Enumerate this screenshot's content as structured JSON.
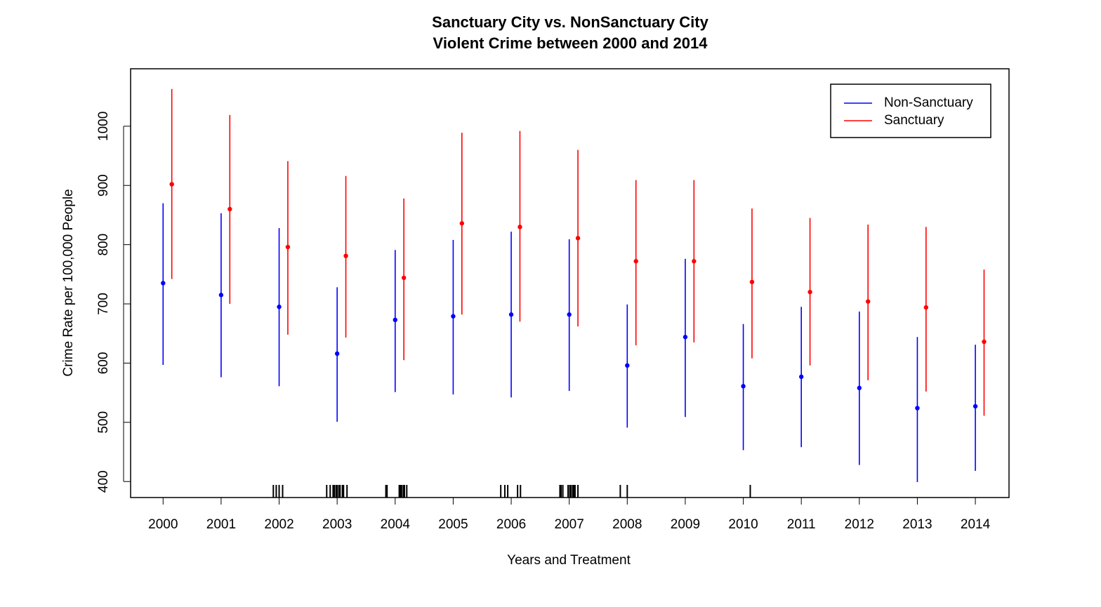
{
  "chart_data": {
    "type": "errorbar",
    "title": [
      "Sanctuary City vs. NonSanctuary City",
      "Violent Crime between 2000 and 2014"
    ],
    "x_label": "Years and Treatment",
    "y_label": "Crime Rate per 100,000 People",
    "xlim": [
      1999.44,
      2014.58
    ],
    "xticks": [
      2000,
      2001,
      2002,
      2003,
      2004,
      2005,
      2006,
      2007,
      2008,
      2009,
      2010,
      2011,
      2012,
      2013,
      2014
    ],
    "ylim": [
      373,
      1097
    ],
    "yticks": [
      400,
      500,
      600,
      700,
      800,
      900,
      1000
    ],
    "legend": "top-right",
    "series": [
      {
        "name": "Non-Sanctuary",
        "color": "#0000ff",
        "x": [
          2000,
          2001,
          2002,
          2003,
          2004,
          2005,
          2006,
          2007,
          2008,
          2009,
          2010,
          2011,
          2012,
          2013,
          2014
        ],
        "values": [
          735,
          715,
          695,
          616,
          673,
          679,
          682,
          682,
          596,
          644,
          561,
          577,
          558,
          524,
          527
        ],
        "low": [
          597,
          576,
          561,
          501,
          551,
          547,
          542,
          553,
          491,
          509,
          453,
          458,
          428,
          399,
          418
        ],
        "high": [
          870,
          853,
          828,
          728,
          791,
          808,
          822,
          809,
          699,
          776,
          666,
          695,
          687,
          644,
          631
        ]
      },
      {
        "name": "Sanctuary",
        "color": "#ff0000",
        "x": [
          2000.15,
          2001.15,
          2002.15,
          2003.15,
          2004.15,
          2005.15,
          2006.15,
          2007.15,
          2008.15,
          2009.15,
          2010.15,
          2011.15,
          2012.15,
          2013.15,
          2014.15
        ],
        "values": [
          902,
          860,
          796,
          781,
          744,
          836,
          830,
          811,
          772,
          772,
          737,
          720,
          704,
          694,
          636
        ],
        "low": [
          742,
          700,
          648,
          643,
          605,
          682,
          670,
          662,
          630,
          635,
          608,
          596,
          571,
          552,
          511
        ],
        "high": [
          1063,
          1019,
          941,
          916,
          878,
          989,
          992,
          960,
          909,
          909,
          861,
          845,
          834,
          830,
          758
        ]
      }
    ],
    "rug": [
      2001.9,
      2001.95,
      2002.0,
      2002.06,
      2002.82,
      2002.88,
      2002.93,
      2002.95,
      2002.98,
      2003.0,
      2003.03,
      2003.05,
      2003.09,
      2003.11,
      2003.17,
      2003.84,
      2003.86,
      2004.07,
      2004.09,
      2004.11,
      2004.14,
      2004.16,
      2004.2,
      2005.82,
      2005.89,
      2005.94,
      2006.11,
      2006.16,
      2006.84,
      2006.86,
      2006.89,
      2006.98,
      2007.01,
      2007.03,
      2007.06,
      2007.08,
      2007.1,
      2007.15,
      2007.88,
      2008.0,
      2010.12
    ]
  }
}
